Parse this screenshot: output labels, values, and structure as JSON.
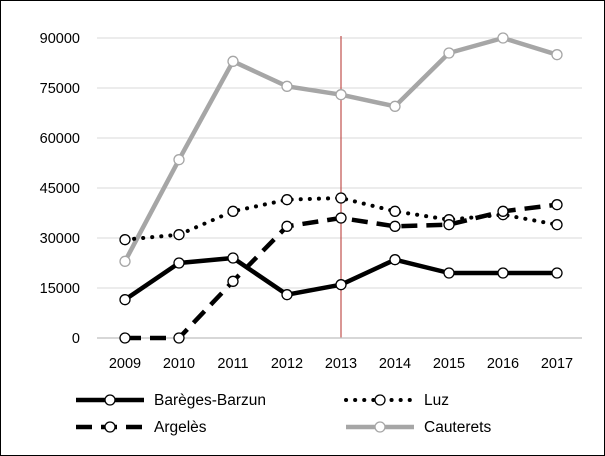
{
  "chart_data": {
    "type": "line",
    "categories": [
      "2009",
      "2010",
      "2011",
      "2012",
      "2013",
      "2014",
      "2015",
      "2016",
      "2017"
    ],
    "ylim": [
      0,
      90000
    ],
    "yticks": [
      "0",
      "15000",
      "30000",
      "45000",
      "60000",
      "75000",
      "90000"
    ],
    "grid": true,
    "legend_position": "bottom",
    "reference_line": {
      "x": "2013",
      "color": "#c0504d"
    },
    "series": [
      {
        "name": "Barèges-Barzun",
        "style": "solid",
        "color": "#000000",
        "values": [
          11500,
          22500,
          24000,
          13000,
          16000,
          23500,
          19500,
          19500,
          19500
        ]
      },
      {
        "name": "Luz",
        "style": "dotted",
        "color": "#000000",
        "values": [
          29500,
          31000,
          38000,
          41500,
          42000,
          38000,
          35500,
          37000,
          34000
        ]
      },
      {
        "name": "Argelès",
        "style": "dashed",
        "color": "#000000",
        "values": [
          0,
          0,
          17000,
          33500,
          36000,
          33500,
          34000,
          38000,
          40000
        ]
      },
      {
        "name": "Cauterets",
        "style": "solid",
        "color": "#a6a6a6",
        "values": [
          23000,
          53500,
          83000,
          75500,
          73000,
          69500,
          85500,
          90000,
          85000
        ]
      }
    ]
  }
}
